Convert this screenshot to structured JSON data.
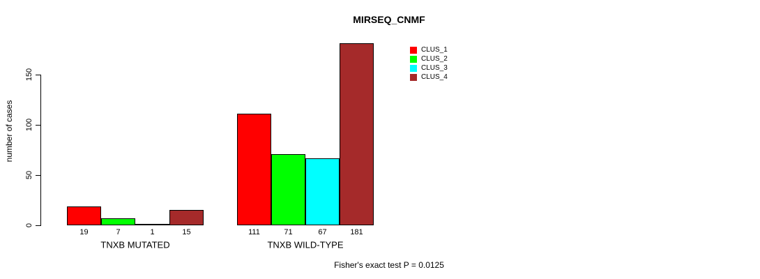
{
  "chart_data": {
    "type": "bar",
    "title": "MIRSEQ_CNMF",
    "ylabel": "number of cases",
    "xlabel": "",
    "categories": [
      "TNXB MUTATED",
      "TNXB WILD-TYPE"
    ],
    "series": [
      {
        "name": "CLUS_1",
        "color": "#FF0000",
        "values": [
          19,
          111
        ]
      },
      {
        "name": "CLUS_2",
        "color": "#00FF00",
        "values": [
          7,
          71
        ]
      },
      {
        "name": "CLUS_3",
        "color": "#00FFFF",
        "values": [
          1,
          67
        ]
      },
      {
        "name": "CLUS_4",
        "color": "#A52A2A",
        "values": [
          15,
          181
        ]
      }
    ],
    "yticks": [
      0,
      50,
      100,
      150
    ],
    "ylim": [
      0,
      185
    ],
    "bar_value_labels_shown": true,
    "grid": false,
    "legend_position": "top-right",
    "annotation": "Fisher's exact test P = 0.0125"
  }
}
